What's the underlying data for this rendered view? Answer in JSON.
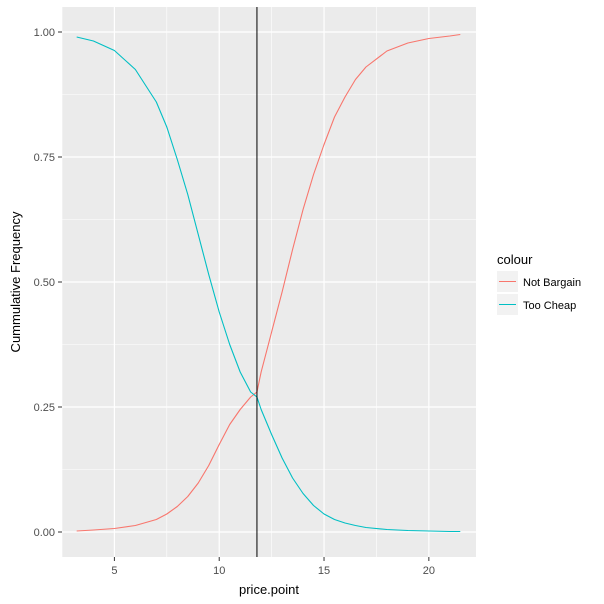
{
  "chart_data": {
    "type": "line",
    "title": "",
    "xlabel": "price.point",
    "ylabel": "Cummulative Frequency",
    "xlim": [
      2.5,
      22.25
    ],
    "ylim": [
      -0.05,
      1.05
    ],
    "x_ticks": [
      5,
      10,
      15,
      20
    ],
    "y_ticks": [
      0.0,
      0.25,
      0.5,
      0.75,
      1.0
    ],
    "x_tick_labels": [
      "5",
      "10",
      "15",
      "20"
    ],
    "y_tick_labels": [
      "0.00",
      "0.25",
      "0.50",
      "0.75",
      "1.00"
    ],
    "grid": true,
    "background": "#ebebeb",
    "legend": {
      "title": "colour",
      "position": "right"
    },
    "vline": {
      "x": 11.8,
      "color": "#000000"
    },
    "series": [
      {
        "name": "Not Bargain",
        "color": "#f8766d",
        "x": [
          3.2,
          4.0,
          5.0,
          6.0,
          7.0,
          7.5,
          8.0,
          8.5,
          9.0,
          9.5,
          10.0,
          10.5,
          11.0,
          11.5,
          11.8,
          12.0,
          12.5,
          13.0,
          13.5,
          14.0,
          14.5,
          15.0,
          15.5,
          16.0,
          16.5,
          17.0,
          18.0,
          19.0,
          20.0,
          21.0,
          21.5
        ],
        "y": [
          0.002,
          0.004,
          0.007,
          0.013,
          0.025,
          0.036,
          0.051,
          0.071,
          0.098,
          0.133,
          0.175,
          0.215,
          0.245,
          0.27,
          0.28,
          0.32,
          0.4,
          0.48,
          0.565,
          0.645,
          0.715,
          0.775,
          0.83,
          0.87,
          0.905,
          0.93,
          0.962,
          0.978,
          0.987,
          0.992,
          0.995
        ]
      },
      {
        "name": "Too Cheap",
        "color": "#00bfc4",
        "x": [
          3.2,
          4.0,
          5.0,
          6.0,
          7.0,
          7.5,
          8.0,
          8.5,
          9.0,
          9.5,
          10.0,
          10.5,
          11.0,
          11.5,
          11.8,
          12.0,
          12.5,
          13.0,
          13.5,
          14.0,
          14.5,
          15.0,
          15.5,
          16.0,
          16.5,
          17.0,
          18.0,
          19.0,
          20.0,
          21.0,
          21.5
        ],
        "y": [
          0.99,
          0.982,
          0.963,
          0.925,
          0.86,
          0.81,
          0.745,
          0.675,
          0.595,
          0.515,
          0.44,
          0.375,
          0.32,
          0.28,
          0.27,
          0.245,
          0.195,
          0.148,
          0.108,
          0.077,
          0.053,
          0.036,
          0.025,
          0.018,
          0.013,
          0.009,
          0.005,
          0.003,
          0.002,
          0.001,
          0.001
        ]
      }
    ]
  }
}
